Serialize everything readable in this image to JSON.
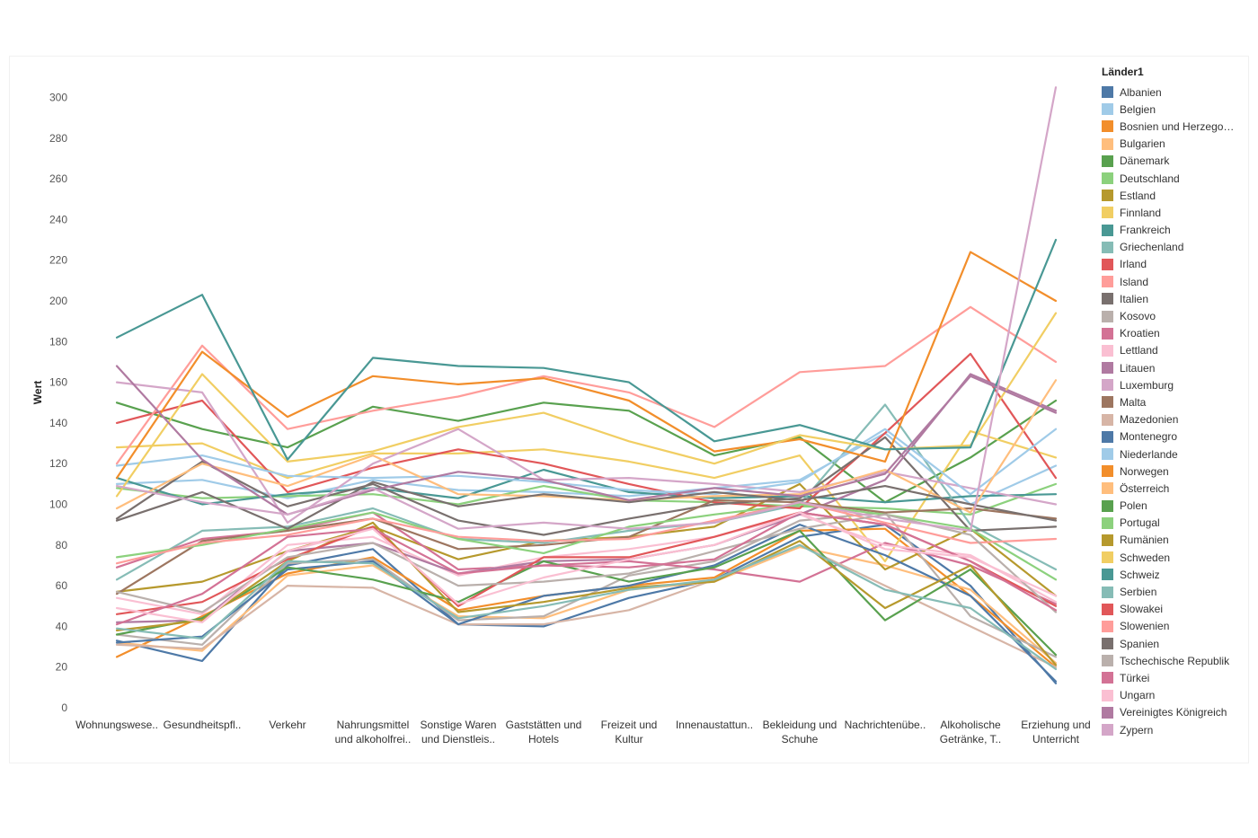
{
  "chart_data": {
    "type": "line",
    "title": "",
    "xlabel": "",
    "ylabel": "Wert",
    "ylim": [
      0,
      310
    ],
    "yticks": [
      0,
      20,
      40,
      60,
      80,
      100,
      120,
      140,
      160,
      180,
      200,
      220,
      240,
      260,
      280,
      300
    ],
    "grid": false,
    "legend_title": "Länder1",
    "legend_position": "right",
    "categories": [
      [
        "Wohnungswese.."
      ],
      [
        "Gesundheitspfl.."
      ],
      [
        "Verkehr"
      ],
      [
        "Nahrungsmittel",
        "und alkoholfrei.."
      ],
      [
        "Sonstige Waren",
        "und Dienstleis.."
      ],
      [
        "Gaststätten und",
        "Hotels"
      ],
      [
        "Freizeit und",
        "Kultur"
      ],
      [
        "Innenaustattun.."
      ],
      [
        "Bekleidung und",
        "Schuhe"
      ],
      [
        "Nachrichtenübe.."
      ],
      [
        "Alkoholische",
        "Getränke, T.."
      ],
      [
        "Erziehung und",
        "Unterricht"
      ]
    ],
    "series": [
      {
        "name": "Albanien",
        "color": "#4e79a7",
        "values": [
          33,
          23,
          70,
          78,
          41,
          40,
          54,
          63,
          84,
          90,
          60,
          12
        ]
      },
      {
        "name": "Belgien",
        "color": "#a0cbe8",
        "values": [
          110,
          112,
          103,
          112,
          107,
          106,
          104,
          108,
          112,
          135,
          100,
          119
        ]
      },
      {
        "name": "Bosnien und Herzego…",
        "color": "#f28e2b",
        "values": [
          25,
          45,
          66,
          74,
          48,
          55,
          60,
          64,
          87,
          88,
          55,
          20
        ]
      },
      {
        "name": "Bulgarien",
        "color": "#ffbe7d",
        "values": [
          32,
          28,
          65,
          70,
          45,
          44,
          58,
          62,
          79,
          70,
          58,
          22
        ]
      },
      {
        "name": "Dänemark",
        "color": "#59a14f",
        "values": [
          150,
          137,
          128,
          148,
          141,
          150,
          146,
          124,
          133,
          101,
          123,
          151
        ]
      },
      {
        "name": "Deutschland",
        "color": "#8cd17d",
        "values": [
          108,
          103,
          104,
          105,
          100,
          109,
          102,
          101,
          99,
          98,
          95,
          110
        ]
      },
      {
        "name": "Estland",
        "color": "#b6992d",
        "values": [
          57,
          62,
          77,
          89,
          73,
          82,
          84,
          89,
          110,
          68,
          88,
          55
        ]
      },
      {
        "name": "Finnland",
        "color": "#f1ce63",
        "values": [
          128,
          130,
          113,
          125,
          125,
          127,
          121,
          113,
          124,
          72,
          136,
          123
        ]
      },
      {
        "name": "Frankreich",
        "color": "#499894",
        "values": [
          113,
          100,
          105,
          108,
          103,
          117,
          106,
          103,
          104,
          101,
          104,
          105
        ]
      },
      {
        "name": "Griechenland",
        "color": "#86bcb6",
        "values": [
          63,
          87,
          89,
          98,
          83,
          81,
          87,
          91,
          100,
          149,
          90,
          68
        ]
      },
      {
        "name": "Irland",
        "color": "#e15759",
        "values": [
          140,
          151,
          106,
          118,
          127,
          120,
          110,
          101,
          98,
          135,
          174,
          113
        ]
      },
      {
        "name": "Island",
        "color": "#ff9d9a",
        "values": [
          120,
          178,
          137,
          146,
          153,
          163,
          155,
          138,
          165,
          168,
          197,
          170
        ]
      },
      {
        "name": "Italien",
        "color": "#79706e",
        "values": [
          93,
          121,
          99,
          110,
          92,
          85,
          93,
          100,
          103,
          133,
          87,
          89
        ]
      },
      {
        "name": "Kosovo",
        "color": "#bab0ac",
        "values": [
          36,
          31,
          71,
          73,
          43,
          45,
          65,
          72,
          92,
          96,
          45,
          25
        ]
      },
      {
        "name": "Kroatien",
        "color": "#d37295",
        "values": [
          69,
          83,
          87,
          96,
          68,
          70,
          72,
          68,
          62,
          81,
          70,
          51
        ]
      },
      {
        "name": "Lettland",
        "color": "#fabfd2",
        "values": [
          54,
          46,
          80,
          84,
          65,
          74,
          78,
          84,
          95,
          80,
          75,
          52
        ]
      },
      {
        "name": "Litauen",
        "color": "#b07aa1",
        "values": [
          42,
          43,
          77,
          81,
          66,
          72,
          73,
          80,
          95,
          112,
          164,
          146
        ]
      },
      {
        "name": "Luxemburg",
        "color": "#d4a6c8",
        "values": [
          160,
          155,
          91,
          120,
          137,
          112,
          113,
          110,
          106,
          116,
          108,
          100
        ]
      },
      {
        "name": "Malta",
        "color": "#9d7660",
        "values": [
          56,
          82,
          87,
          93,
          78,
          80,
          84,
          102,
          101,
          96,
          98,
          93
        ]
      },
      {
        "name": "Mazedonien",
        "color": "#d7b5a6",
        "values": [
          31,
          29,
          60,
          59,
          41,
          41,
          48,
          63,
          80,
          60,
          40,
          20
        ]
      },
      {
        "name": "Montenegro",
        "color": "#4e79a7",
        "values": [
          32,
          35,
          68,
          72,
          41,
          55,
          60,
          70,
          90,
          75,
          55,
          13
        ]
      },
      {
        "name": "Niederlande",
        "color": "#a0cbe8",
        "values": [
          119,
          124,
          114,
          113,
          114,
          111,
          107,
          105,
          111,
          137,
          105,
          137
        ]
      },
      {
        "name": "Norwegen",
        "color": "#f28e2b",
        "values": [
          113,
          175,
          143,
          163,
          159,
          162,
          151,
          126,
          132,
          121,
          224,
          200
        ]
      },
      {
        "name": "Österreich",
        "color": "#ffbe7d",
        "values": [
          98,
          120,
          109,
          124,
          105,
          104,
          102,
          104,
          105,
          117,
          96,
          161
        ]
      },
      {
        "name": "Polen",
        "color": "#59a14f",
        "values": [
          36,
          44,
          69,
          63,
          52,
          72,
          62,
          69,
          87,
          43,
          68,
          26
        ]
      },
      {
        "name": "Portugal",
        "color": "#8cd17d",
        "values": [
          74,
          80,
          88,
          96,
          83,
          76,
          89,
          95,
          100,
          95,
          88,
          63
        ]
      },
      {
        "name": "Rumänien",
        "color": "#b6992d",
        "values": [
          38,
          43,
          72,
          91,
          47,
          52,
          59,
          62,
          82,
          49,
          70,
          21
        ]
      },
      {
        "name": "Schweden",
        "color": "#f1ce63",
        "values": [
          104,
          164,
          121,
          126,
          138,
          145,
          131,
          120,
          134,
          127,
          129,
          194
        ]
      },
      {
        "name": "Schweiz",
        "color": "#499894",
        "values": [
          182,
          203,
          122,
          172,
          168,
          167,
          160,
          131,
          139,
          127,
          128,
          230
        ]
      },
      {
        "name": "Serbien",
        "color": "#86bcb6",
        "values": [
          39,
          34,
          72,
          71,
          44,
          50,
          58,
          63,
          80,
          58,
          49,
          19
        ]
      },
      {
        "name": "Slowakei",
        "color": "#e15759",
        "values": [
          46,
          52,
          73,
          89,
          50,
          74,
          74,
          84,
          96,
          90,
          72,
          50
        ]
      },
      {
        "name": "Slowenien",
        "color": "#ff9d9a",
        "values": [
          71,
          81,
          85,
          93,
          84,
          82,
          83,
          92,
          101,
          91,
          81,
          83
        ]
      },
      {
        "name": "Spanien",
        "color": "#79706e",
        "values": [
          92,
          106,
          88,
          111,
          99,
          105,
          101,
          106,
          102,
          109,
          100,
          92
        ]
      },
      {
        "name": "Tschechische Republik",
        "color": "#bab0ac",
        "values": [
          57,
          47,
          74,
          81,
          60,
          62,
          66,
          77,
          88,
          95,
          85,
          47
        ]
      },
      {
        "name": "Türkei",
        "color": "#d37295",
        "values": [
          41,
          56,
          84,
          88,
          66,
          70,
          69,
          73,
          96,
          90,
          72,
          48
        ]
      },
      {
        "name": "Ungarn",
        "color": "#fabfd2",
        "values": [
          49,
          42,
          77,
          88,
          51,
          64,
          73,
          80,
          96,
          78,
          74,
          55
        ]
      },
      {
        "name": "Vereinigtes Königreich",
        "color": "#b07aa1",
        "values": [
          168,
          122,
          95,
          107,
          116,
          112,
          102,
          108,
          104,
          115,
          163,
          145
        ]
      },
      {
        "name": "Zypern",
        "color": "#d4a6c8",
        "values": [
          109,
          101,
          95,
          108,
          88,
          91,
          88,
          91,
          101,
          93,
          87,
          305
        ]
      }
    ]
  }
}
